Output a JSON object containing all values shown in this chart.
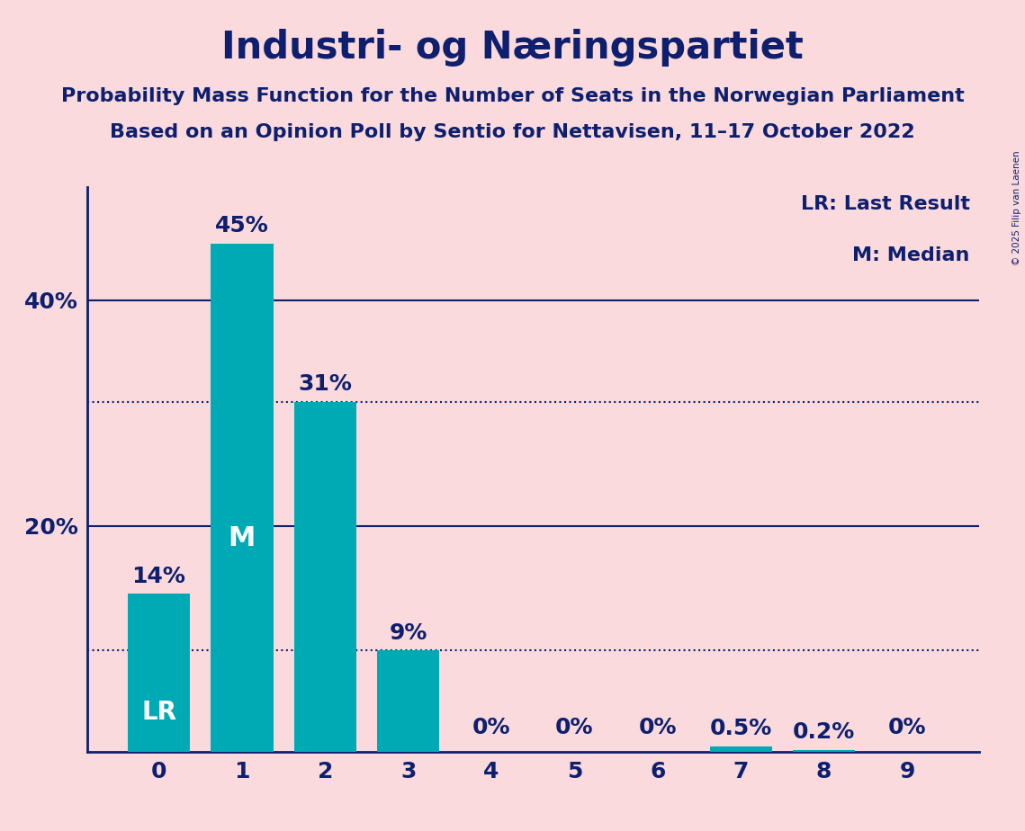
{
  "title": "Industri- og Næringspartiet",
  "subtitle1": "Probability Mass Function for the Number of Seats in the Norwegian Parliament",
  "subtitle2": "Based on an Opinion Poll by Sentio for Nettavisen, 11–17 October 2022",
  "copyright": "© 2025 Filip van Laenen",
  "categories": [
    0,
    1,
    2,
    3,
    4,
    5,
    6,
    7,
    8,
    9
  ],
  "values": [
    14,
    45,
    31,
    9,
    0,
    0,
    0,
    0.5,
    0.2,
    0
  ],
  "labels": [
    "14%",
    "45%",
    "31%",
    "9%",
    "0%",
    "0%",
    "0%",
    "0.5%",
    "0.2%",
    "0%"
  ],
  "bar_color": "#00aab5",
  "background_color": "#fadadd",
  "title_color": "#0d1f6e",
  "text_color": "#0d1f6e",
  "axis_color": "#0d1f6e",
  "label_color_on_bar": "#ffffff",
  "label_color_off_bar": "#0d1f6e",
  "ylim": [
    0,
    50
  ],
  "dotted_lines": [
    31,
    9
  ],
  "legend_text1": "LR: Last Result",
  "legend_text2": "M: Median",
  "title_fontsize": 30,
  "subtitle_fontsize": 16,
  "bar_label_fontsize": 18,
  "legend_fontsize": 16,
  "tick_fontsize": 18,
  "lr_label_fontsize": 20,
  "m_label_fontsize": 22
}
